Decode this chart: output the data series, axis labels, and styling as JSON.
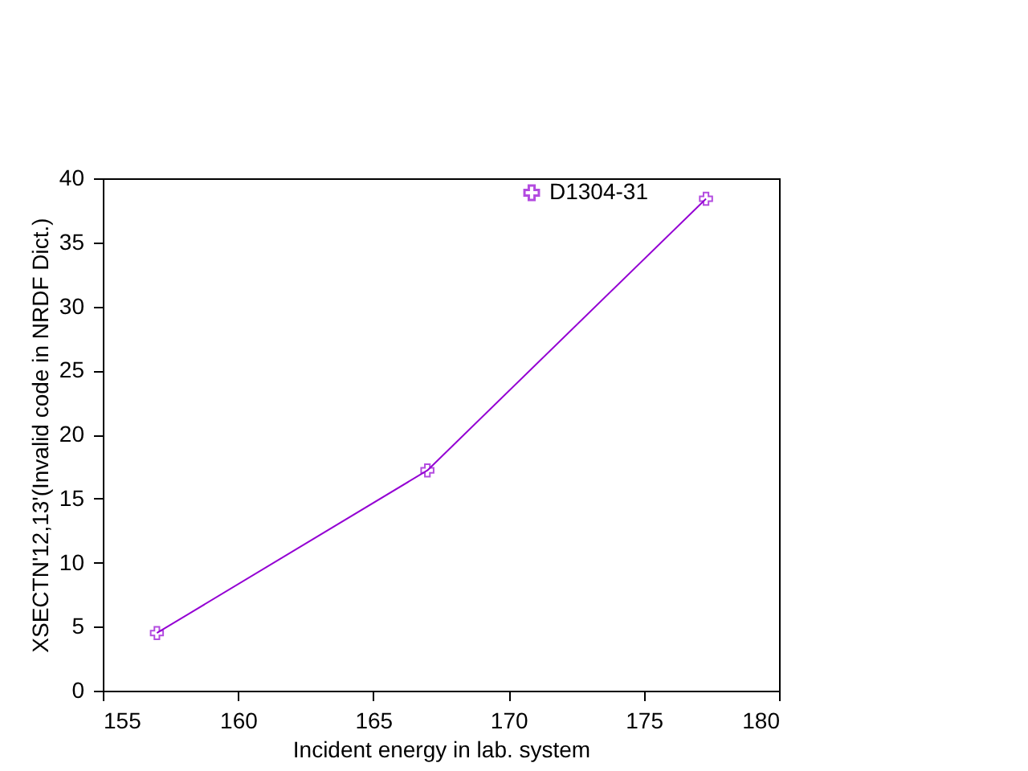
{
  "chart_data": {
    "type": "line",
    "xlabel": "Incident energy in lab. system",
    "ylabel": "XSECTN'12,13'(Invalid code in NRDF Dict.)",
    "x": [
      157,
      167,
      177.3
    ],
    "series": [
      {
        "name": "D1304-31",
        "color": "#9400d3",
        "values": [
          4.5,
          17.2,
          38.4
        ]
      }
    ],
    "xlim": [
      155,
      180
    ],
    "xticks": [
      155,
      160,
      165,
      170,
      175,
      180
    ],
    "ylim": [
      0,
      40
    ],
    "yticks": [
      0,
      5,
      10,
      15,
      20,
      25,
      30,
      35,
      40
    ],
    "grid": false,
    "legend": "top right",
    "marker": "cross",
    "line_style": "solid"
  }
}
